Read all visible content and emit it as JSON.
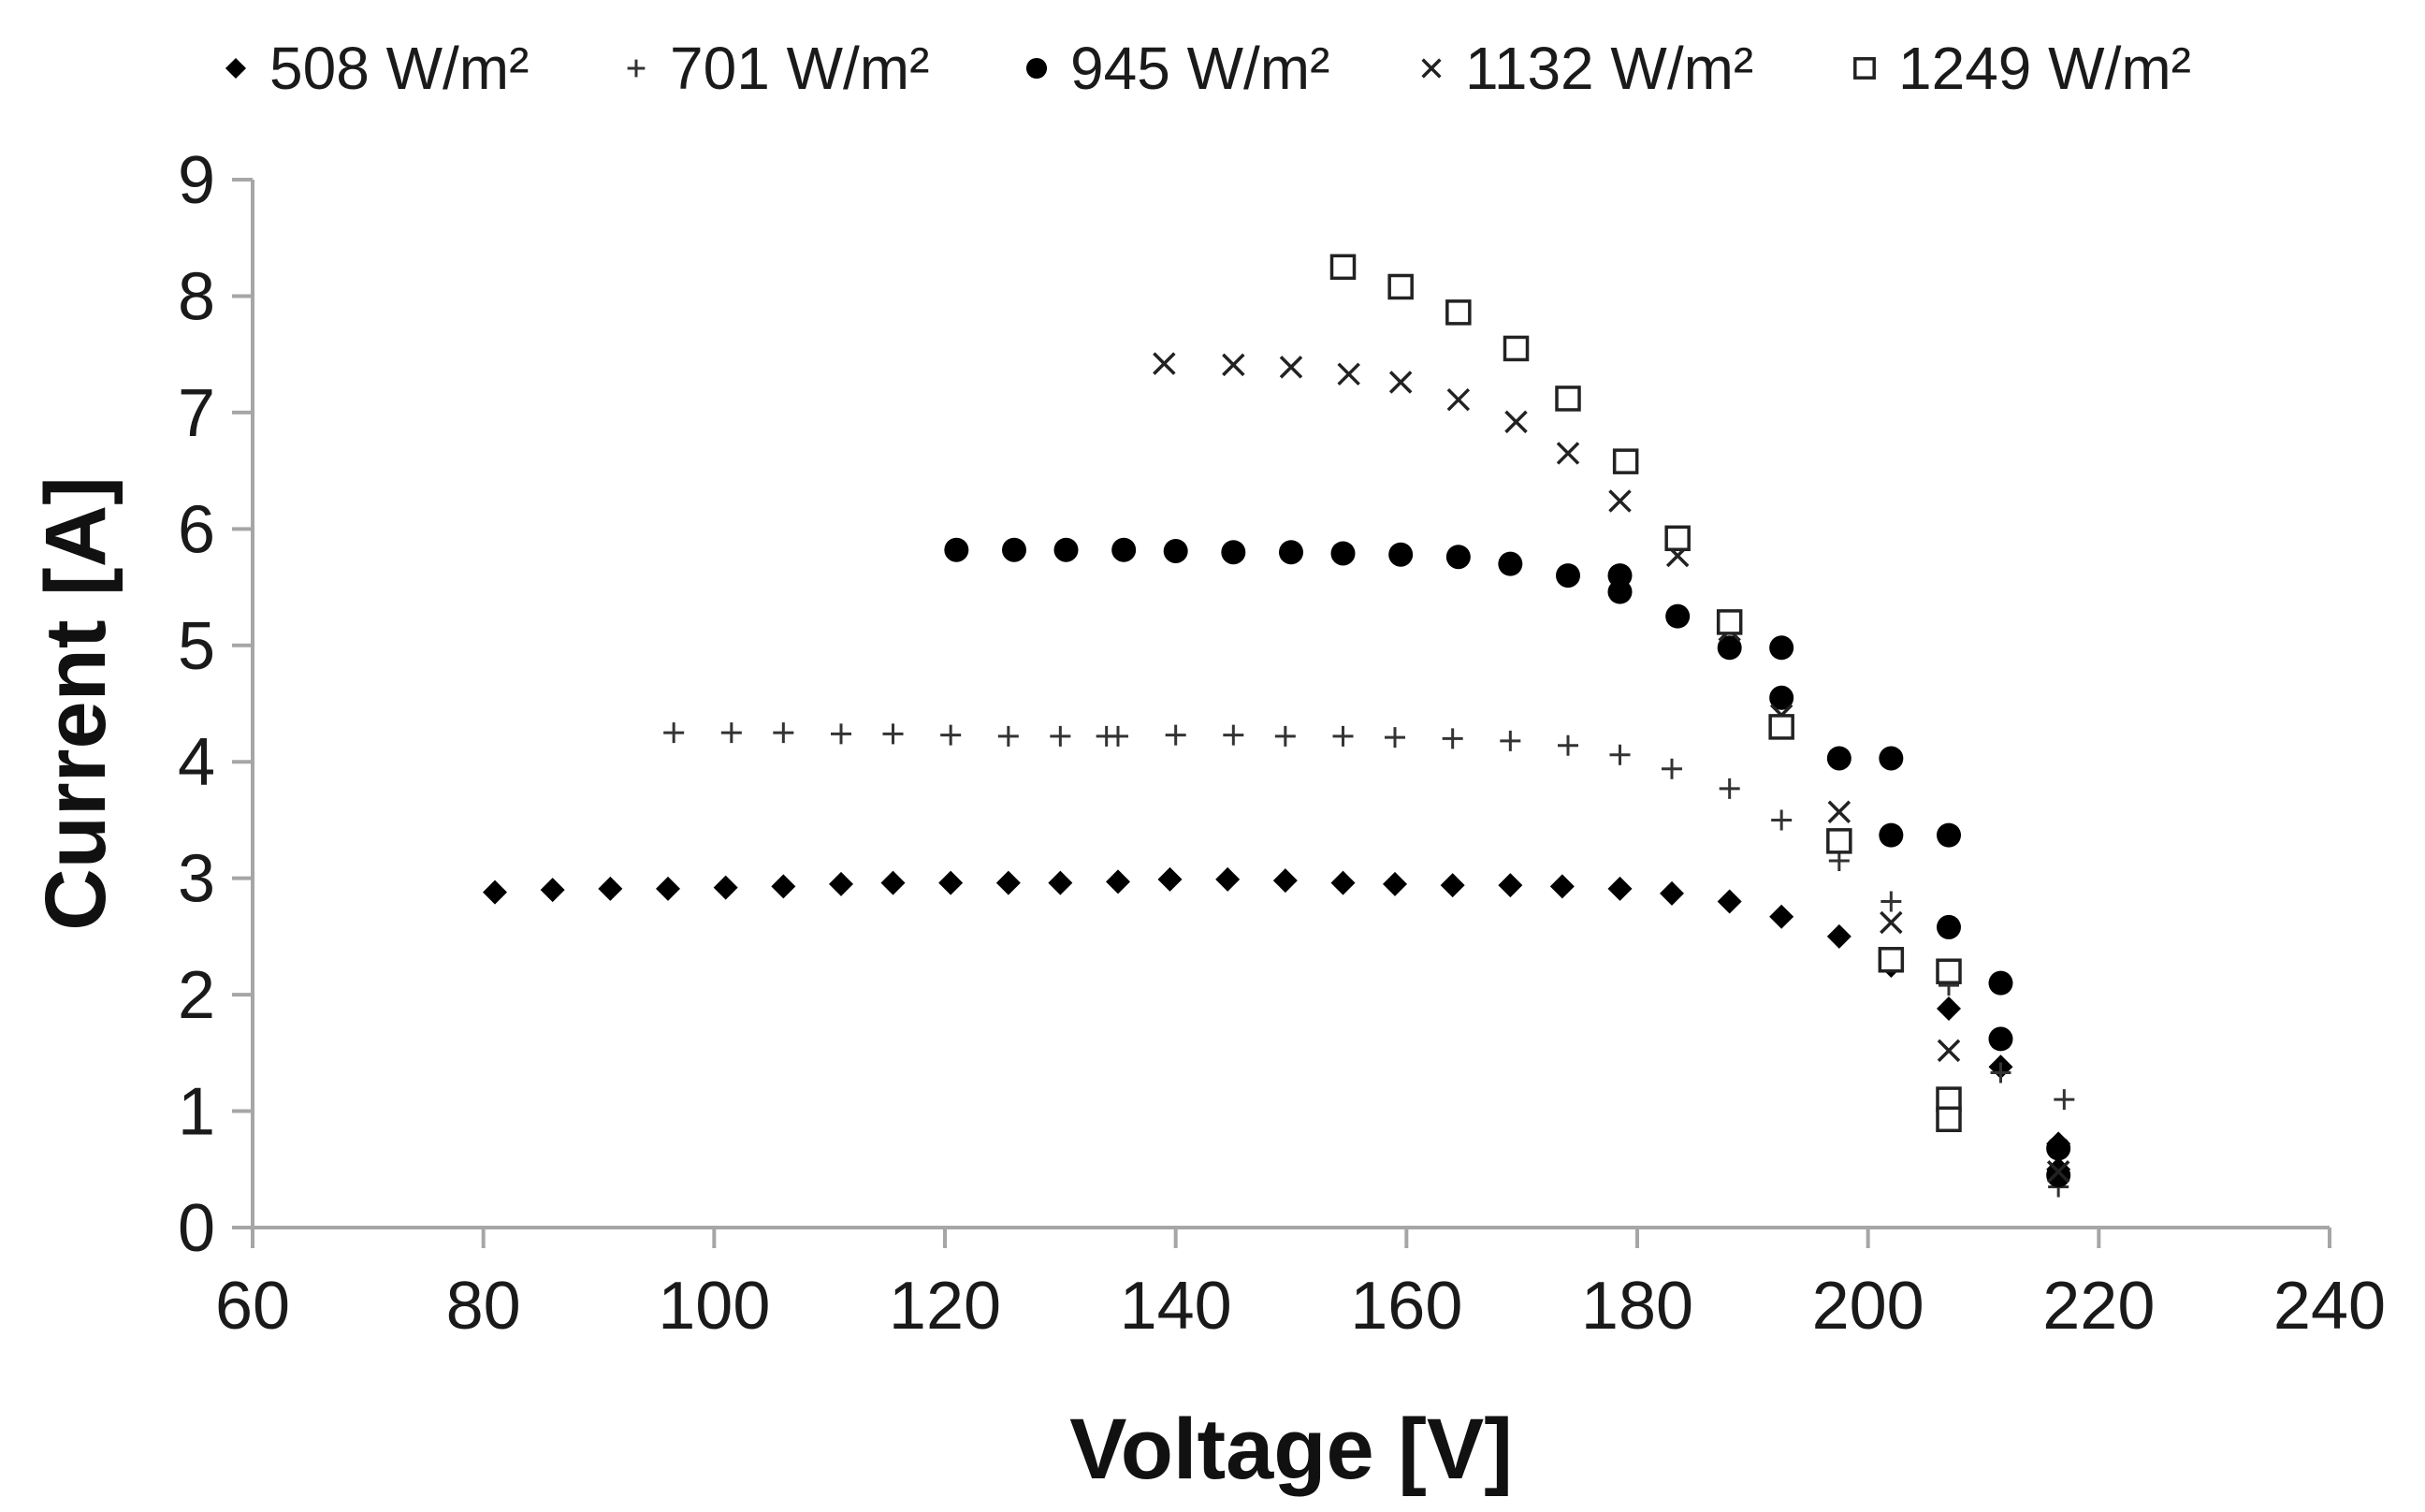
{
  "chart_data": {
    "type": "scatter",
    "title": "",
    "xlabel": "Voltage [V]",
    "ylabel": "Current  [A]",
    "xlim": [
      60,
      240
    ],
    "ylim": [
      0,
      9
    ],
    "xticks": [
      60,
      80,
      100,
      120,
      140,
      160,
      180,
      200,
      220,
      240
    ],
    "yticks": [
      0,
      1,
      2,
      3,
      4,
      5,
      6,
      7,
      8,
      9
    ],
    "grid": false,
    "legend_position": "top",
    "series": [
      {
        "name": "508 W/m²",
        "marker": "diamond",
        "points": [
          [
            81,
            2.88
          ],
          [
            86,
            2.9
          ],
          [
            91,
            2.91
          ],
          [
            96,
            2.91
          ],
          [
            101,
            2.92
          ],
          [
            106,
            2.93
          ],
          [
            111,
            2.95
          ],
          [
            115.5,
            2.96
          ],
          [
            120.5,
            2.96
          ],
          [
            125.5,
            2.96
          ],
          [
            130,
            2.96
          ],
          [
            135,
            2.97
          ],
          [
            139.5,
            2.99
          ],
          [
            144.5,
            2.99
          ],
          [
            149.5,
            2.98
          ],
          [
            154.5,
            2.96
          ],
          [
            159,
            2.95
          ],
          [
            164,
            2.94
          ],
          [
            169,
            2.94
          ],
          [
            173.5,
            2.93
          ],
          [
            178.5,
            2.91
          ],
          [
            183,
            2.87
          ],
          [
            188,
            2.8
          ],
          [
            192.5,
            2.67
          ],
          [
            197.5,
            2.5
          ],
          [
            202,
            2.25
          ],
          [
            207,
            1.88
          ],
          [
            211.5,
            1.38
          ],
          [
            216.5,
            0.72
          ],
          [
            216.5,
            0.5
          ]
        ]
      },
      {
        "name": "701 W/m²",
        "marker": "plus",
        "points": [
          [
            96.5,
            4.25
          ],
          [
            101.5,
            4.25
          ],
          [
            106,
            4.25
          ],
          [
            111,
            4.24
          ],
          [
            115.5,
            4.24
          ],
          [
            120.5,
            4.23
          ],
          [
            125.5,
            4.22
          ],
          [
            130,
            4.22
          ],
          [
            134,
            4.22
          ],
          [
            135,
            4.22
          ],
          [
            140,
            4.23
          ],
          [
            145,
            4.23
          ],
          [
            149.5,
            4.22
          ],
          [
            154.5,
            4.22
          ],
          [
            159,
            4.21
          ],
          [
            164,
            4.2
          ],
          [
            169,
            4.18
          ],
          [
            174,
            4.14
          ],
          [
            178.5,
            4.06
          ],
          [
            183,
            3.94
          ],
          [
            188,
            3.77
          ],
          [
            192.5,
            3.5
          ],
          [
            197.5,
            3.15
          ],
          [
            202,
            2.8
          ],
          [
            207,
            2.08
          ],
          [
            211.5,
            1.33
          ],
          [
            217,
            1.1
          ],
          [
            216.5,
            0.35
          ]
        ]
      },
      {
        "name": "945 W/m²",
        "marker": "circle",
        "points": [
          [
            121,
            5.82
          ],
          [
            126,
            5.82
          ],
          [
            130.5,
            5.82
          ],
          [
            135.5,
            5.82
          ],
          [
            140,
            5.81
          ],
          [
            145,
            5.8
          ],
          [
            150,
            5.8
          ],
          [
            154.5,
            5.79
          ],
          [
            159.5,
            5.78
          ],
          [
            164.5,
            5.76
          ],
          [
            169,
            5.7
          ],
          [
            174,
            5.6
          ],
          [
            178.5,
            5.46
          ],
          [
            178.5,
            5.6
          ],
          [
            183.5,
            5.25
          ],
          [
            188,
            4.98
          ],
          [
            192.5,
            4.98
          ],
          [
            192.5,
            4.55
          ],
          [
            197.5,
            4.03
          ],
          [
            202,
            4.03
          ],
          [
            202,
            3.37
          ],
          [
            207,
            3.37
          ],
          [
            207,
            2.58
          ],
          [
            211.5,
            2.1
          ],
          [
            211.5,
            1.62
          ],
          [
            216.5,
            0.68
          ],
          [
            216.5,
            0.45
          ]
        ]
      },
      {
        "name": "1132 W/m²",
        "marker": "cross",
        "points": [
          [
            139,
            7.42
          ],
          [
            145,
            7.41
          ],
          [
            150,
            7.39
          ],
          [
            155,
            7.33
          ],
          [
            159.5,
            7.26
          ],
          [
            164.5,
            7.11
          ],
          [
            169.5,
            6.92
          ],
          [
            174,
            6.65
          ],
          [
            178.5,
            6.24
          ],
          [
            183.5,
            5.77
          ],
          [
            188,
            5.13
          ],
          [
            192.5,
            4.4
          ],
          [
            197.5,
            3.57
          ],
          [
            202,
            2.62
          ],
          [
            207,
            1.52
          ],
          [
            216.5,
            0.48
          ]
        ]
      },
      {
        "name": "1249 W/m²",
        "marker": "square",
        "points": [
          [
            154.5,
            8.25
          ],
          [
            159.5,
            8.08
          ],
          [
            164.5,
            7.86
          ],
          [
            169.5,
            7.55
          ],
          [
            174,
            7.12
          ],
          [
            179,
            6.58
          ],
          [
            183.5,
            5.92
          ],
          [
            188,
            5.2
          ],
          [
            192.5,
            4.3
          ],
          [
            197.5,
            3.32
          ],
          [
            202,
            2.3
          ],
          [
            207,
            2.2
          ],
          [
            207,
            1.1
          ],
          [
            207,
            0.93
          ]
        ]
      }
    ]
  }
}
